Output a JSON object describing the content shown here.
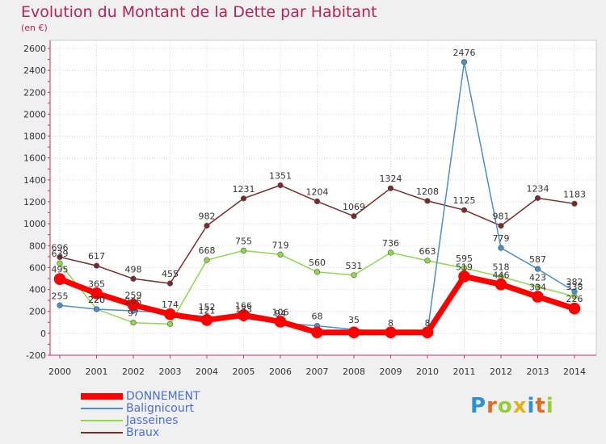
{
  "title": "Evolution du Montant de la Dette par Habitant",
  "subtitle": "(en €)",
  "logo": {
    "letters": [
      "P",
      "r",
      "o",
      "x",
      "i",
      "t",
      "i"
    ],
    "colors": [
      "#2f8fd6",
      "#e06a1f",
      "#9acb3c",
      "#e2b21a",
      "#2f8fd6",
      "#e06a1f",
      "#9acb3c"
    ]
  },
  "chart_data": {
    "type": "line",
    "x": [
      "2000",
      "2001",
      "2002",
      "2003",
      "2004",
      "2005",
      "2006",
      "2007",
      "2008",
      "2009",
      "2010",
      "2011",
      "2012",
      "2013",
      "2014"
    ],
    "ylim": [
      -200,
      2600
    ],
    "yticks": [
      "-200",
      "0",
      "200",
      "400",
      "600",
      "800",
      "1000",
      "1200",
      "1400",
      "1600",
      "1800",
      "2000",
      "2200",
      "2400",
      "2600"
    ],
    "grid": true,
    "legend_position": "bottom-left",
    "series": [
      {
        "name": "DONNEMENT",
        "color": "#ff0000",
        "values": [
          495,
          365,
          259,
          174,
          121,
          166,
          106,
          8,
          8,
          8,
          8,
          519,
          446,
          334,
          226
        ],
        "labels": [
          "495",
          "365",
          "259",
          "174",
          "121",
          "166",
          "106",
          "",
          "",
          "",
          "",
          "519",
          "446",
          "334",
          "226"
        ]
      },
      {
        "name": "Balignicourt",
        "color": "#4a90c8",
        "values": [
          255,
          220,
          205,
          185,
          152,
          133,
          94,
          68,
          35,
          8,
          8,
          2476,
          779,
          587,
          382
        ],
        "labels": [
          "255",
          "220",
          "205",
          "",
          "152",
          "133",
          "94",
          "68",
          "35",
          "8",
          "8",
          "2476",
          "779",
          "587",
          "382"
        ]
      },
      {
        "name": "Jasseines",
        "color": "#8ed84a",
        "values": [
          639,
          220,
          97,
          85,
          668,
          755,
          719,
          560,
          531,
          736,
          663,
          595,
          518,
          423,
          338
        ],
        "labels": [
          "639",
          "220",
          "97",
          "",
          "668",
          "755",
          "719",
          "560",
          "531",
          "736",
          "663",
          "595",
          "518",
          "423",
          "338"
        ]
      },
      {
        "name": "Braux",
        "color": "#7a2a2a",
        "values": [
          696,
          617,
          498,
          455,
          982,
          1231,
          1351,
          1204,
          1069,
          1324,
          1208,
          1125,
          981,
          1234,
          1183
        ],
        "labels": [
          "696",
          "617",
          "498",
          "455",
          "982",
          "1231",
          "1351",
          "1204",
          "1069",
          "1324",
          "1208",
          "1125",
          "981",
          "1234",
          "1183"
        ]
      }
    ]
  }
}
